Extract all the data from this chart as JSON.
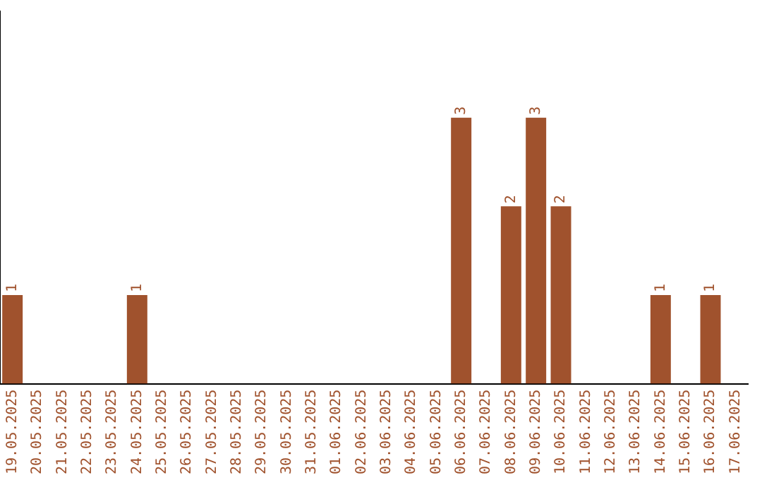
{
  "chart_data": {
    "type": "bar",
    "categories": [
      "19.05.2025",
      "20.05.2025",
      "21.05.2025",
      "22.05.2025",
      "23.05.2025",
      "24.05.2025",
      "25.05.2025",
      "26.05.2025",
      "27.05.2025",
      "28.05.2025",
      "29.05.2025",
      "30.05.2025",
      "31.05.2025",
      "01.06.2025",
      "02.06.2025",
      "03.06.2025",
      "04.06.2025",
      "05.06.2025",
      "06.06.2025",
      "07.06.2025",
      "08.06.2025",
      "09.06.2025",
      "10.06.2025",
      "11.06.2025",
      "12.06.2025",
      "13.06.2025",
      "14.06.2025",
      "15.06.2025",
      "16.06.2025",
      "17.06.2025"
    ],
    "values": [
      1,
      0,
      0,
      0,
      0,
      1,
      0,
      0,
      0,
      0,
      0,
      0,
      0,
      0,
      0,
      0,
      0,
      0,
      3,
      0,
      2,
      3,
      2,
      0,
      0,
      0,
      1,
      0,
      1,
      0
    ],
    "value_labels": [
      "1",
      null,
      null,
      null,
      null,
      "1",
      null,
      null,
      null,
      null,
      null,
      null,
      null,
      null,
      null,
      null,
      null,
      null,
      "3",
      null,
      "2",
      "3",
      "2",
      null,
      null,
      null,
      "1",
      null,
      "1",
      null
    ],
    "color": "#a0522d",
    "ylim": [
      0,
      4.2
    ],
    "tick_labels": "x",
    "grid": false,
    "legend": false
  }
}
